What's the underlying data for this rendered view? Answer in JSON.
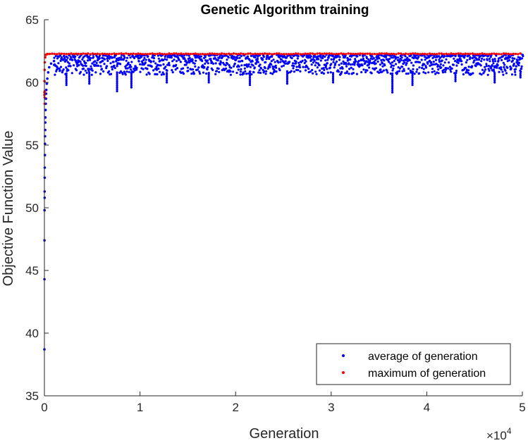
{
  "chart_data": {
    "type": "scatter",
    "title": "Genetic Algorithm training",
    "xlabel": "Generation",
    "ylabel": "Objective Function Value",
    "x_exponent_label": "×10",
    "x_exponent_power": "4",
    "xlim": [
      0,
      50000
    ],
    "ylim": [
      35,
      65
    ],
    "x_ticks": [
      0,
      10000,
      20000,
      30000,
      40000,
      50000
    ],
    "x_tick_labels": [
      "0",
      "1",
      "2",
      "3",
      "4",
      "5"
    ],
    "y_ticks": [
      35,
      40,
      45,
      50,
      55,
      60,
      65
    ],
    "y_tick_labels": [
      "35",
      "40",
      "45",
      "50",
      "55",
      "60",
      "65"
    ],
    "grid": false,
    "legend_position": "bottom-right",
    "series": [
      {
        "name": "average of generation",
        "color": "#0000ff",
        "marker": "dot",
        "early_points": [
          [
            2,
            38.7
          ],
          [
            5,
            44.3
          ],
          [
            10,
            47.4
          ],
          [
            15,
            49.8
          ],
          [
            20,
            50.8
          ],
          [
            25,
            51.3
          ],
          [
            30,
            52.4
          ],
          [
            40,
            53.2
          ],
          [
            50,
            54.2
          ],
          [
            60,
            55.1
          ],
          [
            70,
            55.7
          ],
          [
            80,
            56.2
          ],
          [
            90,
            56.8
          ],
          [
            100,
            57.2
          ],
          [
            120,
            57.8
          ],
          [
            140,
            58.3
          ],
          [
            160,
            58.7
          ],
          [
            180,
            59.1
          ],
          [
            200,
            59.4
          ],
          [
            250,
            59.9
          ],
          [
            300,
            60.3
          ],
          [
            400,
            60.8
          ],
          [
            500,
            61.2
          ],
          [
            700,
            61.5
          ],
          [
            1000,
            61.7
          ]
        ],
        "steady_state": {
          "x_range": [
            1000,
            50000
          ],
          "y_typical_range": [
            60.6,
            62.2
          ],
          "dips": [
            [
              2300,
              59.8
            ],
            [
              4700,
              59.9
            ],
            [
              7600,
              59.3
            ],
            [
              9100,
              59.6
            ],
            [
              12800,
              60.0
            ],
            [
              17200,
              60.0
            ],
            [
              21500,
              59.8
            ],
            [
              25400,
              59.9
            ],
            [
              30200,
              60.0
            ],
            [
              36400,
              59.2
            ],
            [
              38500,
              59.8
            ],
            [
              43000,
              60.1
            ],
            [
              47100,
              60.0
            ],
            [
              49800,
              60.4
            ]
          ]
        }
      },
      {
        "name": "maximum of generation",
        "color": "#ff0000",
        "marker": "dot",
        "early_points": [
          [
            0,
            59.0
          ],
          [
            5,
            59.2
          ],
          [
            10,
            60.1
          ],
          [
            20,
            61.0
          ],
          [
            40,
            61.6
          ],
          [
            80,
            62.0
          ],
          [
            150,
            62.2
          ],
          [
            300,
            62.25
          ]
        ],
        "steady_value": 62.28
      }
    ]
  }
}
